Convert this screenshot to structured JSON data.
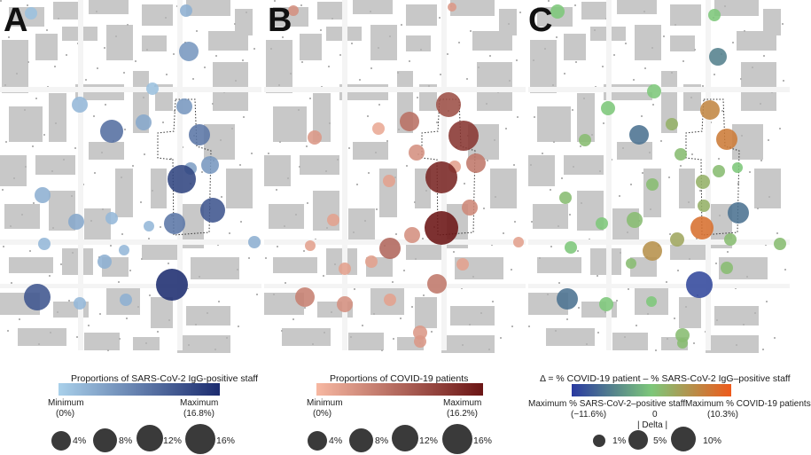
{
  "panels": [
    {
      "letter": "A",
      "legend_title": "Proportions of SARS-CoV-2 IgG-positive staff",
      "min_label": "Minimum",
      "min_value": "(0%)",
      "max_label": "Maximum",
      "max_value": "(16.8%)",
      "gradient": [
        "#a9d0ea",
        "#1c2c6f"
      ],
      "size_labels": [
        "4%",
        "8%",
        "12%",
        "16%"
      ]
    },
    {
      "letter": "B",
      "legend_title": "Proportions of COVID-19 patients",
      "min_label": "Minimum",
      "min_value": "(0%)",
      "max_label": "Maximum",
      "max_value": "(16.2%)",
      "gradient": [
        "#f7b8a2",
        "#6b1515"
      ],
      "size_labels": [
        "4%",
        "8%",
        "12%",
        "16%"
      ]
    },
    {
      "letter": "C",
      "legend_title": "Δ = % COVID-19 patient – % SARS-CoV-2 IgG–positive staff",
      "left_label": "Maximum % SARS-CoV-2–positive staff",
      "left_value": "(−11.6%)",
      "center_label": "0",
      "center_sub": "| Delta |",
      "right_label": "Maximum % COVID-19 patients",
      "right_value": "(10.3%)",
      "gradient": [
        "#2a3aa0",
        "#7dc77a",
        "#ee5a1c"
      ],
      "size_labels": [
        "1%",
        "5%",
        "10%"
      ]
    }
  ],
  "map_palette": {
    "building": "#c8c8c8",
    "background": "#ffffff",
    "boundary": "#333333"
  }
}
